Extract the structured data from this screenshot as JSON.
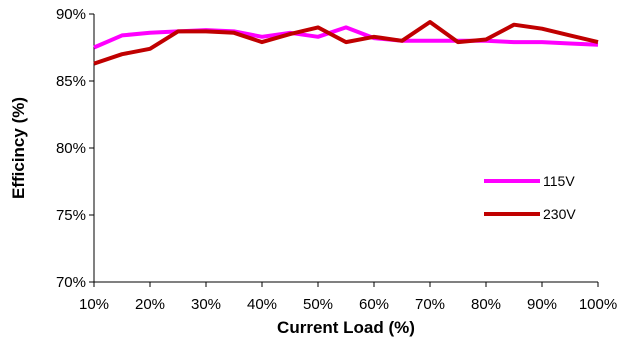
{
  "chart_data": {
    "type": "line",
    "title": "",
    "xlabel": "Current Load (%)",
    "ylabel": "Efficincy (%)",
    "x": [
      10,
      15,
      20,
      25,
      30,
      35,
      40,
      45,
      50,
      55,
      60,
      65,
      70,
      75,
      80,
      85,
      90,
      95,
      100
    ],
    "x_tick_labels": [
      "10%",
      "20%",
      "30%",
      "40%",
      "50%",
      "60%",
      "70%",
      "80%",
      "90%",
      "100%"
    ],
    "x_ticks": [
      10,
      20,
      30,
      40,
      50,
      60,
      70,
      80,
      90,
      100
    ],
    "y_tick_labels": [
      "70%",
      "75%",
      "80%",
      "85%",
      "90%"
    ],
    "y_ticks": [
      70,
      75,
      80,
      85,
      90
    ],
    "xlim": [
      10,
      100
    ],
    "ylim": [
      70,
      90
    ],
    "grid": false,
    "legend_position": "right",
    "series": [
      {
        "name": "115V",
        "color": "#ff00ff",
        "values": [
          87.5,
          88.4,
          88.6,
          88.7,
          88.8,
          88.7,
          88.3,
          88.6,
          88.3,
          89.0,
          88.2,
          88.0,
          88.0,
          88.0,
          88.0,
          87.9,
          87.9,
          87.8,
          87.7
        ]
      },
      {
        "name": "230V",
        "color": "#c00000",
        "values": [
          86.3,
          87.0,
          87.4,
          88.7,
          88.7,
          88.6,
          87.9,
          88.5,
          89.0,
          87.9,
          88.3,
          88.0,
          89.4,
          87.9,
          88.1,
          89.2,
          88.9,
          88.4,
          87.9
        ]
      }
    ]
  }
}
